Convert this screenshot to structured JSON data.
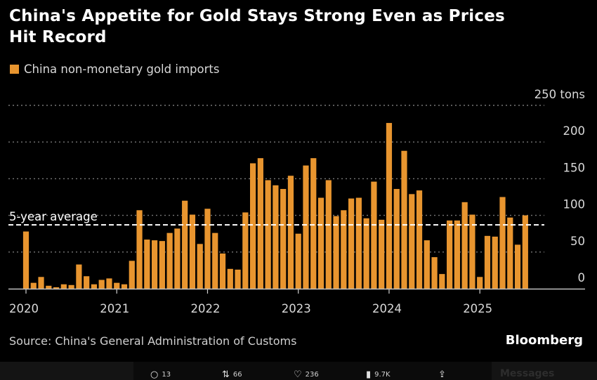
{
  "title": "China's Appetite for Gold Stays Strong Even as Prices Hit Record",
  "title_line1": "China's Appetite for Gold Stays Strong Even as Prices",
  "title_line2": "Hit Record",
  "legend_label": "China non-monetary gold imports",
  "source": "Source: China's General Administration of Customs",
  "brand": "Bloomberg",
  "colors": {
    "bar": "#e8952f",
    "background": "#000000",
    "grid": "#777777",
    "average_line": "#ffffff"
  },
  "chart_data": {
    "type": "bar",
    "title": "China's Appetite for Gold Stays Strong Even as Prices Hit Record",
    "xlabel": "",
    "ylabel": "tons",
    "ylim": [
      0,
      250
    ],
    "yticks": [
      0,
      50,
      100,
      150,
      200,
      250
    ],
    "ytick_labels": [
      "0",
      "50",
      "100",
      "150",
      "200",
      "250 tons"
    ],
    "xtick_labels": [
      "2020",
      "2021",
      "2022",
      "2023",
      "2024",
      "2025"
    ],
    "grid": true,
    "legend_position": "top-left",
    "series": [
      {
        "name": "China non-monetary gold imports",
        "values": [
          78,
          8,
          16,
          4,
          2,
          6,
          5,
          33,
          17,
          6,
          12,
          14,
          8,
          6,
          38,
          107,
          67,
          66,
          65,
          76,
          82,
          120,
          101,
          61,
          109,
          76,
          48,
          27,
          26,
          104,
          171,
          178,
          148,
          141,
          136,
          154,
          75,
          168,
          178,
          124,
          148,
          99,
          107,
          123,
          124,
          96,
          146,
          94,
          226,
          136,
          188,
          129,
          134,
          66,
          43,
          20,
          93,
          93,
          118,
          101,
          16,
          72,
          71,
          125,
          97,
          60,
          100
        ]
      }
    ],
    "start": "2020-01",
    "frequency": "monthly",
    "reference_line": {
      "label": "5-year average",
      "value": 87
    }
  },
  "tweet_actions": [
    {
      "icon": "reply-icon",
      "glyph": "○",
      "count": "13"
    },
    {
      "icon": "repost-icon",
      "glyph": "⇅",
      "count": "66"
    },
    {
      "icon": "like-icon",
      "glyph": "♡",
      "count": "236"
    },
    {
      "icon": "views-icon",
      "glyph": "▮",
      "count": "9.7K"
    },
    {
      "icon": "share-icon",
      "glyph": "⇪",
      "count": ""
    }
  ],
  "messages_label": "Messages"
}
